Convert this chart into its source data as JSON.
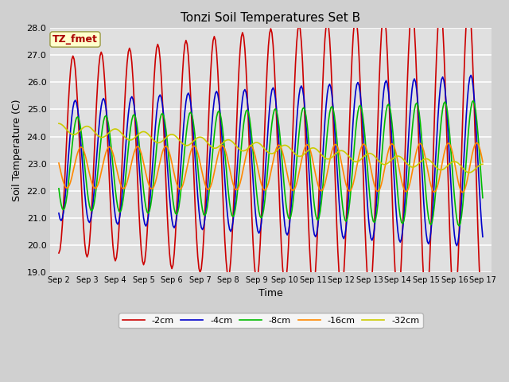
{
  "title": "Tonzi Soil Temperatures Set B",
  "xlabel": "Time",
  "ylabel": "Soil Temperature (C)",
  "ylim": [
    19.0,
    28.0
  ],
  "yticks": [
    19.0,
    20.0,
    21.0,
    22.0,
    23.0,
    24.0,
    25.0,
    26.0,
    27.0,
    28.0
  ],
  "xtick_labels": [
    "Sep 2",
    "Sep 3",
    "Sep 4",
    "Sep 5",
    "Sep 6",
    "Sep 7",
    "Sep 8",
    "Sep 9",
    "Sep 10",
    "Sep 11",
    "Sep 12",
    "Sep 13",
    "Sep 14",
    "Sep 15",
    "Sep 16",
    "Sep 17"
  ],
  "series": [
    {
      "label": "-2cm",
      "color": "#cc0000",
      "lw": 1.2
    },
    {
      "label": "-4cm",
      "color": "#0000cc",
      "lw": 1.2
    },
    {
      "label": "-8cm",
      "color": "#00bb00",
      "lw": 1.2
    },
    {
      "label": "-16cm",
      "color": "#ff8800",
      "lw": 1.2
    },
    {
      "label": "-32cm",
      "color": "#cccc00",
      "lw": 1.2
    }
  ],
  "annotation_text": "TZ_fmet",
  "annotation_color": "#aa0000",
  "annotation_bg": "#ffffcc",
  "annotation_edge": "#999944",
  "fig_facecolor": "#d0d0d0",
  "ax_facecolor": "#e0e0e0"
}
